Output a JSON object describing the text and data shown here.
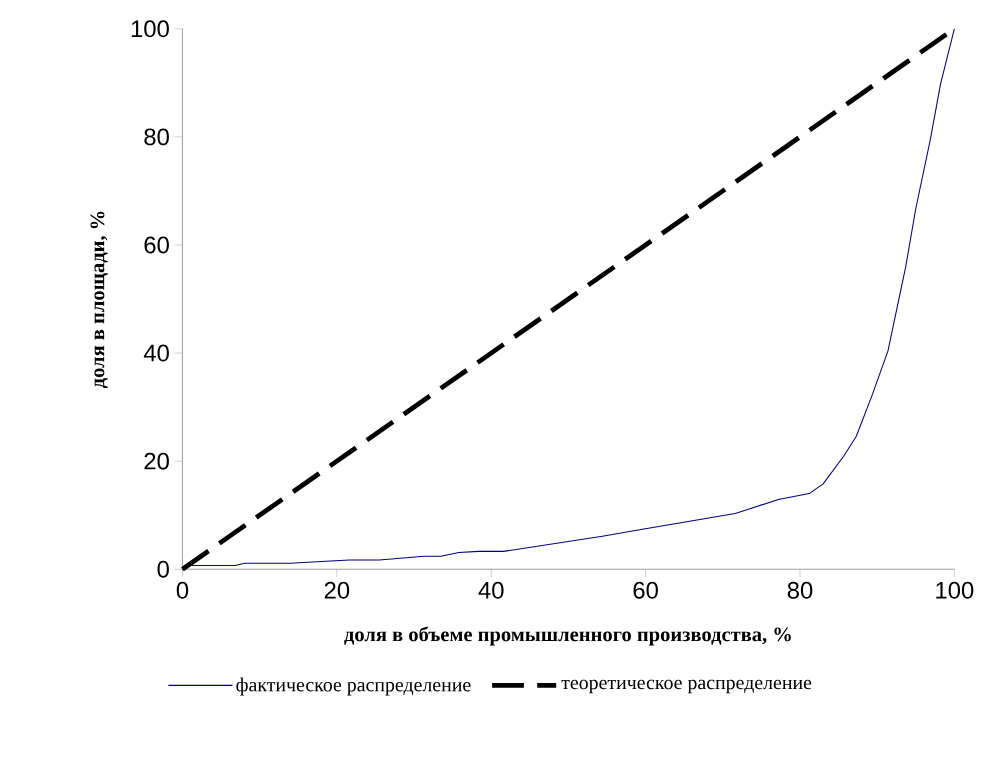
{
  "chart_data": {
    "type": "line",
    "xlabel": "доля в объеме промышленного производства, %",
    "ylabel": "доля в площади, %",
    "xlim": [
      0,
      100
    ],
    "ylim": [
      0,
      100
    ],
    "xticks": [
      0,
      20,
      40,
      60,
      80,
      100
    ],
    "yticks": [
      0,
      20,
      40,
      60,
      80,
      100
    ],
    "legend": "bottom",
    "series": [
      {
        "name": "фактическое распределение",
        "color": "#000080",
        "line_style": "solid",
        "x": [
          0,
          1,
          6.8,
          8.1,
          13.9,
          21.6,
          25.5,
          31.3,
          33.5,
          35.8,
          38.4,
          41.6,
          54.4,
          59.6,
          71.6,
          77.2,
          81.2,
          83,
          85.7,
          87.3,
          89.4,
          91.4,
          93.7,
          95,
          96.9,
          98.2,
          100
        ],
        "values": [
          0,
          0.7,
          0.7,
          1.1,
          1.1,
          1.7,
          1.7,
          2.4,
          2.4,
          3.1,
          3.3,
          3.3,
          6.1,
          7.4,
          10.3,
          12.9,
          14,
          15.8,
          21,
          24.6,
          32.4,
          40.4,
          56,
          66.7,
          79.6,
          89.7,
          100
        ]
      },
      {
        "name": "теоретическое распределение",
        "color": "#000000",
        "line_style": "dashed",
        "x": [
          0,
          100
        ],
        "values": [
          0,
          100
        ]
      }
    ]
  }
}
